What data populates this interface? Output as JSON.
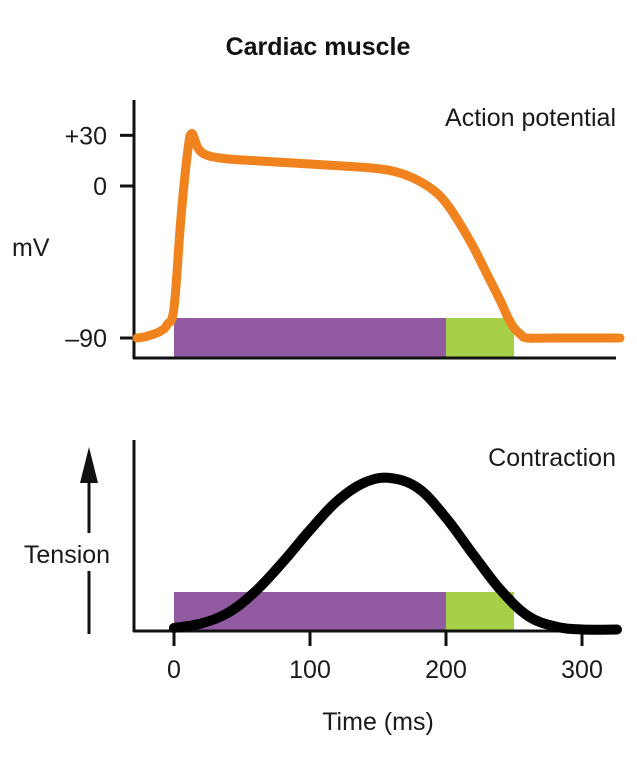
{
  "chart_data": [
    {
      "type": "line",
      "panel": "top",
      "title": "Cardiac muscle",
      "annotation": "Action potential",
      "ylabel": "mV",
      "xlabel": "",
      "xlim": [
        -30,
        330
      ],
      "ylim": [
        -100,
        50
      ],
      "yticks": [
        30,
        0,
        -90
      ],
      "ytick_labels": [
        "+30",
        "0",
        "–90"
      ],
      "series": [
        {
          "name": "Action potential",
          "color": "#f0831e",
          "x": [
            -30,
            -20,
            -10,
            -5,
            0,
            5,
            10,
            13,
            18,
            25,
            40,
            60,
            100,
            140,
            160,
            175,
            190,
            200,
            210,
            220,
            230,
            240,
            245,
            250,
            255,
            260,
            280,
            300,
            330
          ],
          "y": [
            -90,
            -89,
            -86,
            -82,
            -72,
            -20,
            20,
            31,
            22,
            18,
            16,
            15,
            13,
            11,
            9,
            5,
            -2,
            -10,
            -22,
            -36,
            -52,
            -68,
            -77,
            -84,
            -88,
            -90,
            -90,
            -90,
            -90
          ]
        }
      ],
      "bars": [
        {
          "name": "refractory-absolute",
          "start": 0,
          "end": 200,
          "color": "#915aa1"
        },
        {
          "name": "refractory-relative",
          "start": 200,
          "end": 250,
          "color": "#a6d047"
        }
      ]
    },
    {
      "type": "line",
      "panel": "bottom",
      "annotation": "Contraction",
      "ylabel": "Tension",
      "xlabel": "Time (ms)",
      "xlim": [
        -30,
        330
      ],
      "ylim": [
        0,
        1.15
      ],
      "xticks": [
        0,
        100,
        200,
        300
      ],
      "xtick_labels": [
        "0",
        "100",
        "200",
        "300"
      ],
      "series": [
        {
          "name": "Contraction",
          "color": "#000000",
          "x": [
            0,
            20,
            40,
            60,
            80,
            100,
            120,
            140,
            159,
            180,
            200,
            220,
            240,
            260,
            280,
            300,
            330
          ],
          "y": [
            0.02,
            0.05,
            0.12,
            0.26,
            0.45,
            0.66,
            0.85,
            0.97,
            1.0,
            0.93,
            0.74,
            0.5,
            0.27,
            0.1,
            0.03,
            0.01,
            0.01
          ]
        }
      ],
      "bars": [
        {
          "name": "refractory-absolute",
          "start": 0,
          "end": 200,
          "color": "#915aa1"
        },
        {
          "name": "refractory-relative",
          "start": 200,
          "end": 250,
          "color": "#a6d047"
        }
      ]
    }
  ]
}
